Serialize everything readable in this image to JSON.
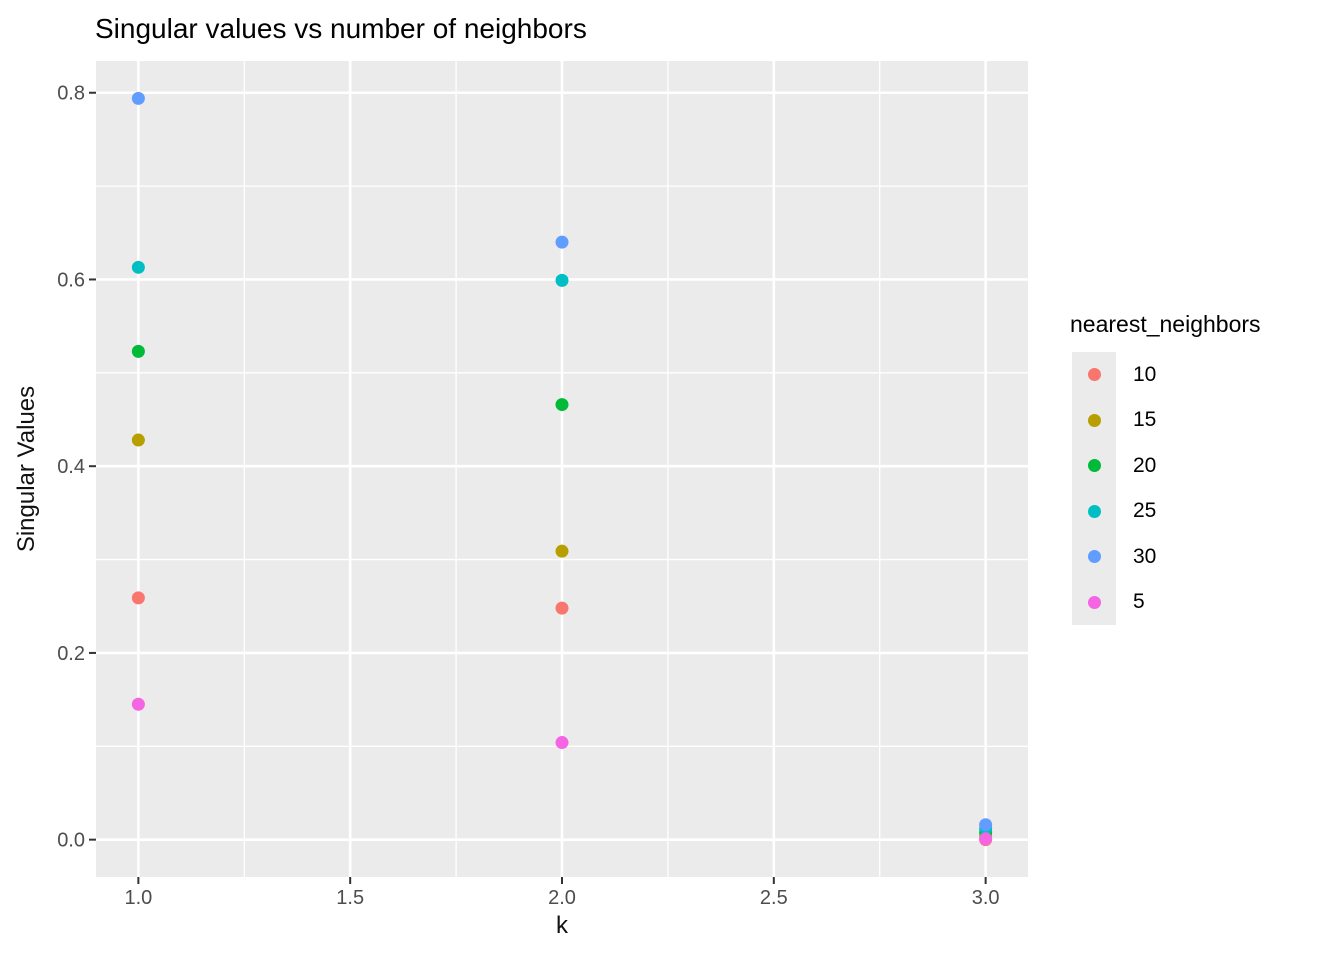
{
  "chart_data": {
    "type": "scatter",
    "title": "Singular values vs number of neighbors",
    "xlabel": "k",
    "ylabel": "Singular Values",
    "legend_title": "nearest_neighbors",
    "legend_position": "right",
    "grid": true,
    "colors": {
      "page_background": "#FFFFFF",
      "panel_background": "#EBEBEB",
      "gridline": "#FFFFFF",
      "legend_key_background": "#EBEBEB",
      "tick_mark": "#333333",
      "tick_label": "#4D4D4D",
      "title_text": "#000000",
      "axis_title_text": "#111111",
      "legend_text": "#000000"
    },
    "x": [
      1,
      2,
      3
    ],
    "series": [
      {
        "name": "10",
        "color": "#F8766D",
        "values": [
          0.259,
          0.248,
          0.0
        ]
      },
      {
        "name": "15",
        "color": "#B79F00",
        "values": [
          0.428,
          0.309,
          0.004
        ]
      },
      {
        "name": "20",
        "color": "#00BA38",
        "values": [
          0.523,
          0.466,
          0.008
        ]
      },
      {
        "name": "25",
        "color": "#00BFC4",
        "values": [
          0.613,
          0.599,
          0.012
        ]
      },
      {
        "name": "30",
        "color": "#619CFF",
        "values": [
          0.794,
          0.64,
          0.016
        ]
      },
      {
        "name": "5",
        "color": "#F564E2",
        "values": [
          0.145,
          0.104,
          0.001
        ]
      }
    ],
    "x_ticks": [
      1.0,
      1.5,
      2.0,
      2.5,
      3.0
    ],
    "x_tick_labels": [
      "1.0",
      "1.5",
      "2.0",
      "2.5",
      "3.0"
    ],
    "x_minor_ticks": [
      1.25,
      1.75,
      2.25,
      2.75
    ],
    "y_ticks": [
      0.0,
      0.2,
      0.4,
      0.6,
      0.8
    ],
    "y_tick_labels": [
      "0.0",
      "0.2",
      "0.4",
      "0.6",
      "0.8"
    ],
    "y_minor_ticks": [
      0.1,
      0.3,
      0.5,
      0.7
    ],
    "xlim": [
      0.9,
      3.1
    ],
    "ylim": [
      -0.04,
      0.834
    ],
    "point_radius": 6.5
  }
}
